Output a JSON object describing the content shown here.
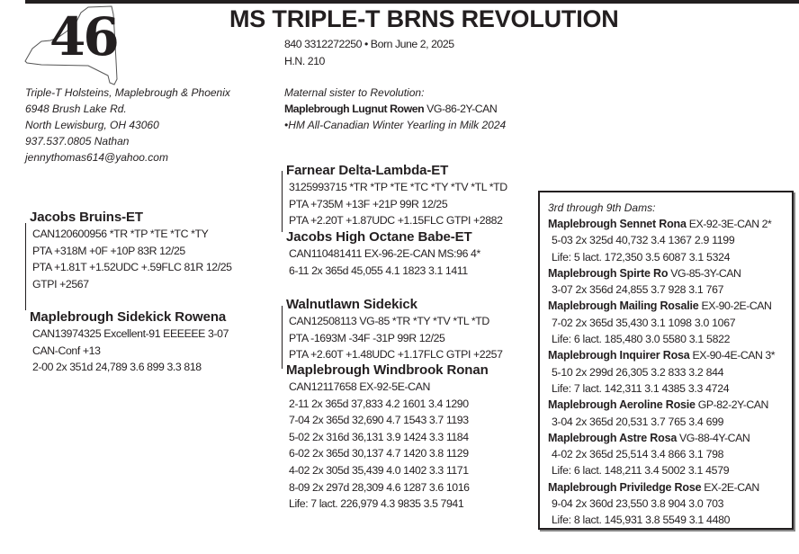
{
  "header": {
    "lot_number": "46",
    "title": "MS TRIPLE-T BRNS REVOLUTION",
    "registration": "840 3312272250  •  Born June 2, 2025",
    "herd_number": "H.N. 210"
  },
  "consignor": {
    "lines": [
      "Triple-T Holsteins, Maplebrough & Phoenix",
      "6948 Brush Lake Rd.",
      "North Lewisburg, OH  43060",
      "937.537.0805 Nathan",
      "jennythomas614@yahoo.com"
    ]
  },
  "maternal_sister": {
    "label": "Maternal sister to Revolution:",
    "name": "Maplebrough Lugnut Rowen",
    "classification": " VG-86-2Y-CAN",
    "award": "•HM All-Canadian Winter Yearling in Milk 2024"
  },
  "pedigree": {
    "sire": {
      "name": "Jacobs Bruins-ET",
      "lines": [
        "CAN120600956   *TR *TP *TE *TC *TY",
        "PTA +318M +0F +10P 83R 12/25",
        "PTA +1.81T +1.52UDC +.59FLC 81R 12/25",
        "GTPI +2567"
      ]
    },
    "dam": {
      "name": "Maplebrough Sidekick Rowena",
      "lines": [
        "CAN13974325    Excellent-91 EEEEEE  3-07",
        "CAN-Conf +13",
        "2-00  2x  351d  24,789  3.6  899  3.3  818"
      ]
    },
    "sire_sire": {
      "name": "Farnear Delta-Lambda-ET",
      "lines": [
        "3125993715  *TR *TP *TE *TC *TY *TV *TL *TD",
        "PTA +735M +13F +21P 99R 12/25",
        "PTA +2.20T +1.87UDC +1.15FLC GTPI +2882"
      ]
    },
    "sire_dam": {
      "name": "Jacobs High Octane Babe-ET",
      "lines": [
        "CAN110481411    EX-96-2E-CAN MS:96 4*",
        "6-11  2x  365d  45,055  4.1  1823  3.1  1411"
      ]
    },
    "dam_sire": {
      "name": "Walnutlawn Sidekick",
      "lines": [
        "CAN12508113    VG-85    *TR *TY *TV *TL *TD",
        "PTA -1693M -34F -31P 99R 12/25",
        "PTA +2.60T +1.48UDC +1.17FLC GTPI +2257"
      ]
    },
    "dam_dam": {
      "name": "Maplebrough Windbrook Ronan",
      "lines": [
        "CAN12117658     EX-92-5E-CAN",
        "2-11  2x  365d  37,833  4.2  1601  3.4  1290",
        "7-04  2x  365d  32,690  4.7  1543  3.7  1193",
        "5-02  2x  316d  36,131  3.9  1424  3.3  1184",
        "6-02  2x  365d  30,137  4.7  1420  3.8  1129",
        "4-02  2x  305d  35,439  4.0  1402  3.3  1171",
        "8-09  2x  297d  28,309  4.6  1287  3.6  1016",
        "Life:    7 lact.  226,979  4.3  9835  3.5  7941"
      ]
    }
  },
  "dams_box": {
    "heading": "3rd through 9th Dams:",
    "dams": [
      {
        "name": "Maplebrough Sennet Rona",
        "suffix": " EX-92-3E-CAN 2*",
        "records": [
          "5-03  2x  325d  40,732  3.4  1367  2.9  1199",
          "Life:    5 lact.  172,350  3.5  6087  3.1  5324"
        ]
      },
      {
        "name": "Maplebrough Spirte Ro",
        "suffix": "  VG-85-3Y-CAN",
        "records": [
          "3-07  2x  356d  24,855  3.7  928  3.1  767"
        ]
      },
      {
        "name": "Maplebrough Mailing Rosalie",
        "suffix": " EX-90-2E-CAN",
        "records": [
          "7-02  2x  365d  35,430  3.1  1098  3.0  1067",
          "Life:    6 lact.  185,480  3.0  5580  3.1  5822"
        ]
      },
      {
        "name": "Maplebrough Inquirer Rosa",
        "suffix": " EX-90-4E-CAN 3*",
        "records": [
          "5-10  2x  299d  26,305  3.2  833  3.2  844",
          "Life:  7 lact.  142,311  3.1  4385  3.3  4724"
        ]
      },
      {
        "name": "Maplebrough Aeroline Rosie",
        "suffix": " GP-82-2Y-CAN",
        "records": [
          "3-04  2x  365d  20,531  3.7  765  3.4  699"
        ]
      },
      {
        "name": "Maplebrough Astre Rosa",
        "suffix": " VG-88-4Y-CAN",
        "records": [
          "4-02  2x  365d  25,514  3.4  866  3.1  798",
          "Life:  6 lact.  148,211  3.4  5002  3.1  4579"
        ]
      },
      {
        "name": "Maplebrough Priviledge Rose",
        "suffix": " EX-2E-CAN",
        "records": [
          "9-04  2x  360d  23,550  3.8  904  3.0  703",
          "Life:  8 lact.  145,931  3.8  5549  3.1  4480"
        ]
      }
    ]
  },
  "colors": {
    "ink": "#231f20"
  },
  "icons": {
    "state_outline": "new-york-state-outline"
  }
}
